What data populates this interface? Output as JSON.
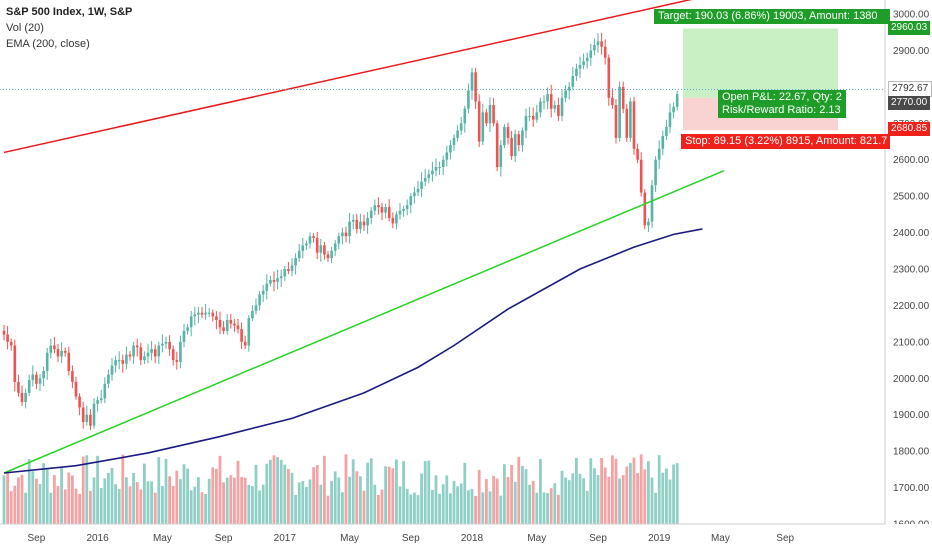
{
  "legend": {
    "symbol": "S&P 500 Index, 1W, S&P",
    "vol": "Vol (20)",
    "ema": "EMA (200, close)"
  },
  "position_tool": {
    "target_text": "Target: 190.03 (6.86%) 19003, Amount: 1380",
    "pl_line1": "Open P&L: 22.67, Qty: 2",
    "pl_line2": "Risk/Reward Ratio: 2.13",
    "stop_text": "Stop: 89.15 (3.22%) 8915, Amount: 821.7",
    "target_price": "2960.03",
    "current_price": "2792.67",
    "entry_price": "2770.00",
    "stop_price": "2680.85"
  },
  "colors": {
    "up": "#56b3a6",
    "down": "#ef5350",
    "vol_up": "#8fcfc6",
    "vol_down": "#f4a3a5",
    "resistance": "#e8181b",
    "support": "#26d323",
    "ema": "#1a1a80",
    "target_zone": "#c9efc5",
    "stop_zone": "#f9d3d2",
    "tag_green": "#1e9e28",
    "tag_red": "#f0201a",
    "price_tag_dark": "#4a4a4a"
  },
  "chart_data": {
    "type": "candlestick",
    "title": "S&P 500 Index, 1W, S&P",
    "x_tick_labels": [
      "Sep",
      "2016",
      "May",
      "Sep",
      "2017",
      "May",
      "Sep",
      "2018",
      "May",
      "Sep",
      "2019",
      "May",
      "Sep"
    ],
    "y_tick_labels": [
      "1600.00",
      "1700.00",
      "1800.00",
      "1900.00",
      "2000.00",
      "2100.00",
      "2200.00",
      "2300.00",
      "2400.00",
      "2500.00",
      "2600.00",
      "2700.00",
      "2800.00",
      "2900.00",
      "3000.00"
    ],
    "ylim": [
      1580,
      3040
    ],
    "x_range": [
      "2015-07-06",
      "2019-11-11"
    ],
    "closes": [
      2120,
      2100,
      2090,
      1990,
      1960,
      1935,
      1960,
      1995,
      2010,
      1985,
      2000,
      2020,
      2070,
      2090,
      2080,
      2060,
      2075,
      2070,
      2020,
      1990,
      1950,
      1920,
      1880,
      1900,
      1870,
      1930,
      1940,
      1945,
      1985,
      2010,
      2035,
      2050,
      2050,
      2040,
      2065,
      2060,
      2090,
      2085,
      2050,
      2060,
      2070,
      2080,
      2060,
      2090,
      2095,
      2100,
      2080,
      2050,
      2045,
      2100,
      2130,
      2140,
      2170,
      2175,
      2180,
      2175,
      2180,
      2180,
      2170,
      2160,
      2140,
      2130,
      2160,
      2150,
      2145,
      2135,
      2100,
      2090,
      2165,
      2185,
      2200,
      2230,
      2240,
      2260,
      2270,
      2265,
      2275,
      2280,
      2300,
      2295,
      2310,
      2330,
      2350,
      2365,
      2370,
      2390,
      2385,
      2345,
      2365,
      2340,
      2330,
      2350,
      2370,
      2390,
      2400,
      2390,
      2430,
      2435,
      2410,
      2430,
      2420,
      2440,
      2460,
      2475,
      2470,
      2455,
      2470,
      2440,
      2425,
      2450,
      2460,
      2465,
      2475,
      2500,
      2510,
      2520,
      2540,
      2550,
      2560,
      2570,
      2580,
      2580,
      2600,
      2620,
      2640,
      2660,
      2680,
      2700,
      2740,
      2790,
      2840,
      2760,
      2650,
      2730,
      2700,
      2750,
      2700,
      2580,
      2640,
      2690,
      2660,
      2610,
      2670,
      2640,
      2680,
      2720,
      2720,
      2710,
      2730,
      2760,
      2760,
      2780,
      2740,
      2750,
      2720,
      2770,
      2790,
      2800,
      2830,
      2850,
      2860,
      2870,
      2880,
      2900,
      2915,
      2925,
      2910,
      2880,
      2770,
      2750,
      2660,
      2800,
      2740,
      2660,
      2760,
      2630,
      2600,
      2510,
      2420,
      2430,
      2530,
      2600,
      2630,
      2665,
      2690,
      2730,
      2745,
      2780
    ],
    "volume_scale": "relative",
    "ema_200": [
      [
        0,
        1740
      ],
      [
        20,
        1760
      ],
      [
        40,
        1795
      ],
      [
        60,
        1840
      ],
      [
        80,
        1890
      ],
      [
        100,
        1960
      ],
      [
        115,
        2030
      ],
      [
        125,
        2090
      ],
      [
        140,
        2190
      ],
      [
        160,
        2300
      ],
      [
        175,
        2360
      ],
      [
        186,
        2395
      ],
      [
        194,
        2410
      ]
    ],
    "trendlines": [
      {
        "name": "resistance",
        "points": [
          [
            0,
            2620
          ],
          [
            200,
            3060
          ]
        ]
      },
      {
        "name": "support",
        "points": [
          [
            0,
            1740
          ],
          [
            200,
            2570
          ]
        ]
      }
    ],
    "position": {
      "target": 2960.03,
      "entry": 2770.0,
      "stop": 2680.85,
      "current": 2792.67
    }
  }
}
